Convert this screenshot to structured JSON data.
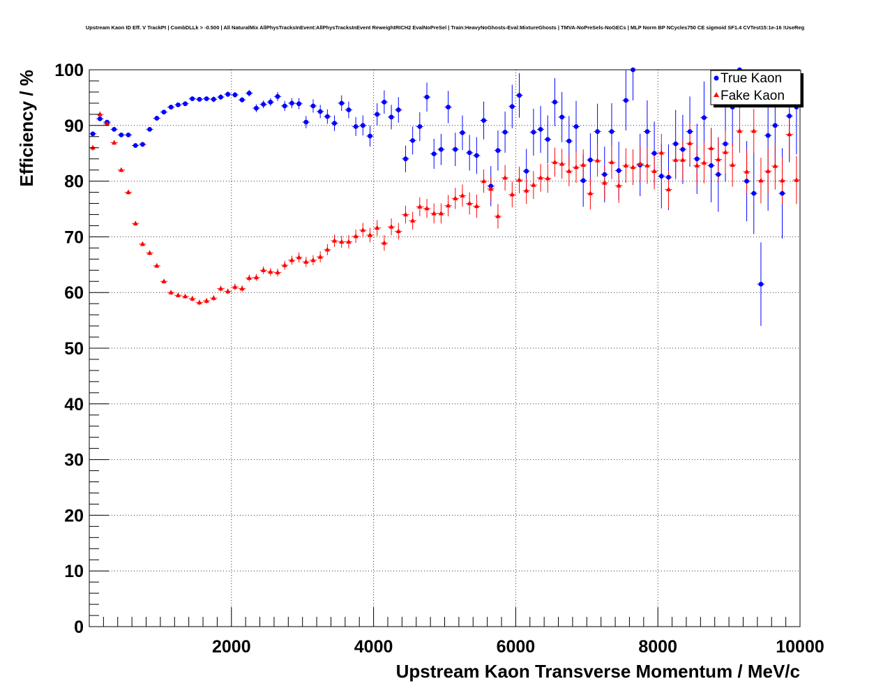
{
  "chart_data": {
    "type": "scatter",
    "title": "Upstream Kaon ID Eff. V TrackPt | CombDLLk > -0.500 | All NaturalMix AllPhysTracksInEvent:AllPhysTracksInEvent ReweightRICH2 EvalNoPreSel | Train:HeavyNoGhosts-Eval:MixtureGhosts | TMVA-NoPreSels-NoGECs | MLP Norm BP NCycles750 CE sigmoid SF1.4 CVTest15:1e-16 !UseReg",
    "xlabel": "Upstream Kaon Transverse Momentum / MeV/c",
    "ylabel": "Efficiency / %",
    "xlim": [
      0,
      10000
    ],
    "ylim": [
      0,
      100
    ],
    "grid": true,
    "legend_position": "top-right",
    "x_ticks": [
      2000,
      4000,
      6000,
      8000,
      10000
    ],
    "x_tick_labels": [
      "2000",
      "4000",
      "6000",
      "8000",
      "10000"
    ],
    "y_ticks": [
      0,
      10,
      20,
      30,
      40,
      50,
      60,
      70,
      80,
      90,
      100
    ],
    "y_tick_labels": [
      "0",
      "10",
      "20",
      "30",
      "40",
      "50",
      "60",
      "70",
      "80",
      "90",
      "100"
    ],
    "series": [
      {
        "name": "True Kaon",
        "color": "#0000ff",
        "marker": "circle",
        "x": [
          50,
          150,
          250,
          350,
          450,
          550,
          650,
          750,
          850,
          950,
          1050,
          1150,
          1250,
          1350,
          1450,
          1550,
          1650,
          1750,
          1850,
          1950,
          2050,
          2150,
          2250,
          2350,
          2450,
          2550,
          2650,
          2750,
          2850,
          2950,
          3050,
          3150,
          3250,
          3350,
          3450,
          3550,
          3650,
          3750,
          3850,
          3950,
          4050,
          4150,
          4250,
          4350,
          4450,
          4550,
          4650,
          4750,
          4850,
          4950,
          5050,
          5150,
          5250,
          5350,
          5450,
          5550,
          5650,
          5750,
          5850,
          5950,
          6050,
          6150,
          6250,
          6350,
          6450,
          6550,
          6650,
          6750,
          6850,
          6950,
          7050,
          7150,
          7250,
          7350,
          7450,
          7550,
          7650,
          7750,
          7850,
          7950,
          8050,
          8150,
          8250,
          8350,
          8450,
          8550,
          8650,
          8750,
          8850,
          8950,
          9050,
          9150,
          9250,
          9350,
          9450,
          9550,
          9650,
          9750,
          9850,
          9950
        ],
        "y": [
          88.5,
          91.2,
          90.6,
          89.3,
          88.3,
          88.3,
          86.4,
          86.6,
          89.3,
          91.3,
          92.4,
          93.3,
          93.7,
          93.9,
          94.8,
          94.7,
          94.8,
          94.7,
          95.1,
          95.6,
          95.5,
          94.6,
          95.8,
          93.1,
          93.8,
          94.2,
          95.2,
          93.5,
          94.0,
          93.9,
          90.6,
          93.5,
          92.5,
          91.6,
          90.4,
          94.0,
          92.8,
          89.8,
          90.0,
          88.1,
          92.0,
          94.2,
          91.5,
          92.8,
          84.0,
          87.3,
          89.8,
          95.1,
          84.9,
          85.7,
          93.3,
          85.7,
          88.7,
          85.1,
          84.6,
          90.9,
          79.1,
          85.5,
          88.8,
          93.4,
          95.4,
          81.8,
          88.8,
          89.3,
          87.5,
          94.2,
          91.5,
          87.2,
          89.8,
          80.1,
          83.8,
          88.9,
          81.2,
          88.9,
          81.9,
          94.5,
          100.0,
          82.9,
          88.9,
          85.0,
          80.9,
          80.7,
          86.7,
          85.7,
          88.9,
          84.0,
          91.4,
          82.8,
          81.2,
          86.7,
          93.3,
          100.0,
          80.0,
          77.8,
          61.5,
          88.2,
          90.0,
          77.8,
          91.7,
          93.3
        ],
        "err": [
          0.4,
          0.4,
          0.4,
          0.4,
          0.4,
          0.4,
          0.4,
          0.4,
          0.4,
          0.4,
          0.4,
          0.4,
          0.4,
          0.4,
          0.4,
          0.4,
          0.4,
          0.5,
          0.5,
          0.5,
          0.5,
          0.5,
          0.6,
          0.7,
          0.7,
          0.7,
          0.8,
          0.9,
          0.9,
          1.0,
          1.1,
          1.2,
          1.2,
          1.3,
          1.4,
          1.4,
          1.5,
          1.7,
          1.8,
          1.9,
          2.0,
          2.1,
          2.2,
          2.3,
          2.4,
          2.5,
          2.6,
          2.6,
          2.7,
          2.8,
          2.9,
          3.0,
          3.1,
          3.2,
          3.3,
          3.4,
          3.6,
          3.6,
          3.7,
          3.9,
          4.0,
          4.0,
          4.2,
          4.2,
          4.3,
          4.3,
          4.5,
          4.5,
          4.6,
          4.7,
          4.8,
          5.0,
          5.0,
          5.1,
          5.2,
          5.4,
          5.5,
          5.6,
          5.6,
          5.7,
          5.8,
          5.9,
          6.1,
          6.2,
          6.3,
          6.3,
          6.5,
          6.6,
          6.7,
          6.8,
          7.0,
          7.0,
          7.2,
          7.3,
          7.5,
          13.5,
          8.0,
          8.1,
          8.3,
          8.5
        ]
      },
      {
        "name": "Fake Kaon",
        "color": "#ff0000",
        "marker": "triangle",
        "x": [
          50,
          150,
          250,
          350,
          450,
          550,
          650,
          750,
          850,
          950,
          1050,
          1150,
          1250,
          1350,
          1450,
          1550,
          1650,
          1750,
          1850,
          1950,
          2050,
          2150,
          2250,
          2350,
          2450,
          2550,
          2650,
          2750,
          2850,
          2950,
          3050,
          3150,
          3250,
          3350,
          3450,
          3550,
          3650,
          3750,
          3850,
          3950,
          4050,
          4150,
          4250,
          4350,
          4450,
          4550,
          4650,
          4750,
          4850,
          4950,
          5050,
          5150,
          5250,
          5350,
          5450,
          5550,
          5650,
          5750,
          5850,
          5950,
          6050,
          6150,
          6250,
          6350,
          6450,
          6550,
          6650,
          6750,
          6850,
          6950,
          7050,
          7150,
          7250,
          7350,
          7450,
          7550,
          7650,
          7750,
          7850,
          7950,
          8050,
          8150,
          8250,
          8350,
          8450,
          8550,
          8650,
          8750,
          8850,
          8950,
          9050,
          9150,
          9250,
          9350,
          9450,
          9550,
          9650,
          9750,
          9850,
          9950
        ],
        "y": [
          86.0,
          92.0,
          90.3,
          86.9,
          82.0,
          78.0,
          72.4,
          68.7,
          67.1,
          64.8,
          62.0,
          60.0,
          59.5,
          59.3,
          58.9,
          58.2,
          58.5,
          59.0,
          60.7,
          60.2,
          61.0,
          60.7,
          62.6,
          62.7,
          64.0,
          63.7,
          63.6,
          64.9,
          65.8,
          66.3,
          65.5,
          65.8,
          66.4,
          67.7,
          69.3,
          69.1,
          69.1,
          70.1,
          71.2,
          70.3,
          71.6,
          68.9,
          71.8,
          71.0,
          74.0,
          72.9,
          75.4,
          75.1,
          74.2,
          74.2,
          75.6,
          76.9,
          77.4,
          76.0,
          75.5,
          80.0,
          78.6,
          73.7,
          80.6,
          77.6,
          80.2,
          78.3,
          79.3,
          80.6,
          80.5,
          83.4,
          83.1,
          81.8,
          82.5,
          82.9,
          77.8,
          83.7,
          79.7,
          83.4,
          79.2,
          82.8,
          82.5,
          83.1,
          82.8,
          81.8,
          85.1,
          78.5,
          83.8,
          83.8,
          86.8,
          82.8,
          83.3,
          85.9,
          83.9,
          85.2,
          82.9,
          89.0,
          81.7,
          89.0,
          80.1,
          81.8,
          82.7,
          80.1,
          88.4,
          80.2
        ],
        "err": [
          0.5,
          0.5,
          0.4,
          0.4,
          0.4,
          0.4,
          0.4,
          0.4,
          0.4,
          0.4,
          0.4,
          0.4,
          0.4,
          0.4,
          0.5,
          0.5,
          0.5,
          0.5,
          0.5,
          0.5,
          0.6,
          0.6,
          0.6,
          0.6,
          0.7,
          0.7,
          0.7,
          0.8,
          0.8,
          0.9,
          0.9,
          0.9,
          1.0,
          1.0,
          1.1,
          1.1,
          1.2,
          1.2,
          1.3,
          1.3,
          1.4,
          1.4,
          1.5,
          1.5,
          1.6,
          1.6,
          1.7,
          1.7,
          1.8,
          1.8,
          1.9,
          1.9,
          2.0,
          2.0,
          2.1,
          2.1,
          2.2,
          2.2,
          2.3,
          2.3,
          2.4,
          2.4,
          2.5,
          2.5,
          2.6,
          2.6,
          2.7,
          2.7,
          2.8,
          2.8,
          2.9,
          2.9,
          3.0,
          3.0,
          3.1,
          3.1,
          3.2,
          3.2,
          3.3,
          3.3,
          3.4,
          3.4,
          3.5,
          3.5,
          3.6,
          3.6,
          3.7,
          3.7,
          3.8,
          3.8,
          3.9,
          3.9,
          4.0,
          4.0,
          4.1,
          4.1,
          4.2,
          4.2,
          4.3,
          4.3
        ]
      }
    ]
  }
}
